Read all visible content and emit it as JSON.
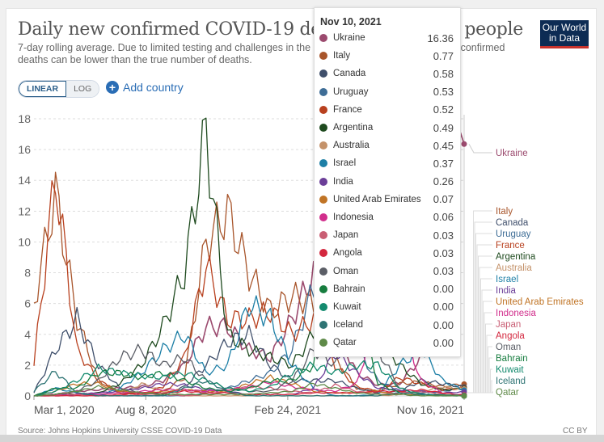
{
  "header": {
    "title": "Daily new confirmed COVID-19 deaths per million people",
    "subtitle": "7-day rolling average. Due to limited testing and challenges in the attribution of the cause of death, confirmed deaths can be lower than the true number of deaths.",
    "logo_line1": "Our World",
    "logo_line2": "in Data"
  },
  "controls": {
    "scale_linear": "LINEAR",
    "scale_log": "LOG",
    "scale_selected": "LINEAR",
    "add_country": "Add country"
  },
  "footer": {
    "source": "Source: Johns Hopkins University CSSE COVID-19 Data",
    "license": "CC BY"
  },
  "tooltip": {
    "date": "Nov 10, 2021",
    "rows": [
      {
        "name": "Ukraine",
        "value": "16.36",
        "color": "#9b4a6e"
      },
      {
        "name": "Italy",
        "value": "0.77",
        "color": "#a8552b"
      },
      {
        "name": "Canada",
        "value": "0.58",
        "color": "#3f4f6b"
      },
      {
        "name": "Uruguay",
        "value": "0.53",
        "color": "#3e6d96"
      },
      {
        "name": "France",
        "value": "0.52",
        "color": "#b8401e"
      },
      {
        "name": "Argentina",
        "value": "0.49",
        "color": "#1e4a1e"
      },
      {
        "name": "Australia",
        "value": "0.45",
        "color": "#c4926a"
      },
      {
        "name": "Israel",
        "value": "0.37",
        "color": "#1d7fa6"
      },
      {
        "name": "India",
        "value": "0.26",
        "color": "#6b3e98"
      },
      {
        "name": "United Arab Emirates",
        "value": "0.07",
        "color": "#c07425"
      },
      {
        "name": "Indonesia",
        "value": "0.06",
        "color": "#d12e8c"
      },
      {
        "name": "Japan",
        "value": "0.03",
        "color": "#c95e74"
      },
      {
        "name": "Angola",
        "value": "0.03",
        "color": "#d3273e"
      },
      {
        "name": "Oman",
        "value": "0.03",
        "color": "#5b5e66"
      },
      {
        "name": "Bahrain",
        "value": "0.00",
        "color": "#177d3f"
      },
      {
        "name": "Kuwait",
        "value": "0.00",
        "color": "#138a6e"
      },
      {
        "name": "Iceland",
        "value": "0.00",
        "color": "#2e7474"
      },
      {
        "name": "Qatar",
        "value": "0.00",
        "color": "#5f8a48"
      }
    ]
  },
  "chart_data": {
    "type": "line",
    "title": "Daily new confirmed COVID-19 deaths per million people",
    "xlabel": "",
    "ylabel": "",
    "ylim": [
      0,
      18
    ],
    "yticks": [
      "0",
      "2",
      "4",
      "6",
      "8",
      "10",
      "12",
      "14",
      "16",
      "18"
    ],
    "xticks": [
      "Mar 1, 2020",
      "Aug 8, 2020",
      "Feb 24, 2021",
      "Nov 16, 2021"
    ],
    "grid": true,
    "legend": "right-labels",
    "x": [
      "2020-03",
      "2020-04",
      "2020-05",
      "2020-06",
      "2020-07",
      "2020-08",
      "2020-09",
      "2020-10",
      "2020-11",
      "2020-12",
      "2021-01",
      "2021-02",
      "2021-03",
      "2021-04",
      "2021-05",
      "2021-06",
      "2021-07",
      "2021-08",
      "2021-09",
      "2021-10",
      "2021-11"
    ],
    "series": [
      {
        "name": "Ukraine",
        "values": [
          0,
          0.1,
          0.3,
          0.4,
          0.5,
          0.6,
          1.0,
          2.0,
          4.5,
          4.5,
          3.0,
          2.5,
          5.0,
          8.0,
          4.5,
          1.5,
          0.7,
          0.8,
          2.5,
          8.0,
          16.36
        ]
      },
      {
        "name": "Italy",
        "values": [
          6.0,
          13.2,
          5.0,
          1.0,
          0.2,
          0.1,
          0.3,
          1.2,
          10.0,
          12.0,
          8.0,
          5.5,
          6.5,
          6.0,
          2.5,
          0.5,
          0.3,
          0.8,
          0.9,
          0.6,
          0.77
        ]
      },
      {
        "name": "Canada",
        "values": [
          0.2,
          3.0,
          5.0,
          2.0,
          0.5,
          0.2,
          0.1,
          0.6,
          2.0,
          3.5,
          4.0,
          2.0,
          1.0,
          1.0,
          1.0,
          0.5,
          0.2,
          0.3,
          1.0,
          0.8,
          0.58
        ]
      },
      {
        "name": "Uruguay",
        "values": [
          0,
          0.1,
          0.1,
          0,
          0,
          0,
          0,
          0,
          0.2,
          0.5,
          1.0,
          1.5,
          3.0,
          7.0,
          5.0,
          3.0,
          1.0,
          0.3,
          0.2,
          0.3,
          0.53
        ]
      },
      {
        "name": "France",
        "values": [
          2.0,
          14.4,
          3.0,
          1.0,
          0.2,
          0.1,
          0.6,
          2.5,
          8.5,
          5.0,
          5.0,
          5.5,
          4.0,
          5.0,
          2.0,
          0.6,
          0.3,
          1.2,
          0.8,
          0.4,
          0.52
        ]
      },
      {
        "name": "Argentina",
        "values": [
          0,
          0.1,
          0.1,
          0.2,
          0.8,
          2.0,
          4.5,
          8.0,
          17.3,
          4.0,
          3.0,
          2.5,
          2.0,
          4.0,
          11.0,
          9.0,
          4.0,
          2.0,
          0.8,
          0.4,
          0.49
        ]
      },
      {
        "name": "Australia",
        "values": [
          0,
          0.1,
          0,
          0,
          0.1,
          0.8,
          0.3,
          0,
          0,
          0,
          0,
          0,
          0,
          0,
          0,
          0,
          0,
          0.1,
          0.3,
          0.6,
          0.45
        ]
      },
      {
        "name": "Israel",
        "values": [
          0,
          0.5,
          0.2,
          0,
          0.5,
          1.5,
          3.0,
          4.0,
          1.5,
          2.0,
          6.0,
          5.0,
          2.0,
          0.5,
          0,
          0,
          0.1,
          2.0,
          3.0,
          1.0,
          0.37
        ]
      },
      {
        "name": "India",
        "values": [
          0,
          0,
          0.1,
          0.2,
          0.3,
          0.5,
          0.8,
          0.7,
          0.4,
          0.3,
          0.1,
          0.1,
          0.1,
          0.5,
          2.8,
          1.5,
          0.5,
          0.4,
          0.3,
          0.2,
          0.26
        ]
      },
      {
        "name": "United Arab Emirates",
        "values": [
          0,
          0.3,
          0.8,
          0.8,
          0.3,
          0.2,
          0.3,
          0.4,
          0.3,
          0.3,
          0.8,
          1.2,
          0.8,
          0.3,
          0.2,
          0.2,
          0.3,
          0.1,
          0.1,
          0.05,
          0.07
        ]
      },
      {
        "name": "Indonesia",
        "values": [
          0,
          0.1,
          0.1,
          0.1,
          0.2,
          0.3,
          0.4,
          0.4,
          0.3,
          0.4,
          0.6,
          0.9,
          0.6,
          0.4,
          0.3,
          0.8,
          5.5,
          5.0,
          1.0,
          0.2,
          0.06
        ]
      },
      {
        "name": "Japan",
        "values": [
          0,
          0,
          0.1,
          0,
          0,
          0.1,
          0.1,
          0,
          0.1,
          0.3,
          0.6,
          0.5,
          0.3,
          0.2,
          0.7,
          0.3,
          0.1,
          0.2,
          0.3,
          0.1,
          0.03
        ]
      },
      {
        "name": "Angola",
        "values": [
          0,
          0,
          0,
          0,
          0.1,
          0.2,
          0.2,
          0.3,
          0.2,
          0.2,
          0.1,
          0.1,
          0.1,
          0.2,
          0.2,
          0.2,
          0.3,
          0.3,
          0.4,
          0.2,
          0.03
        ]
      },
      {
        "name": "Oman",
        "values": [
          0,
          0.1,
          0.3,
          1.0,
          2.5,
          3.0,
          2.0,
          2.5,
          1.0,
          0.5,
          0.3,
          0.3,
          1.0,
          3.0,
          2.0,
          5.0,
          3.0,
          0.5,
          0.1,
          0.05,
          0.03
        ]
      },
      {
        "name": "Bahrain",
        "values": [
          0,
          0.5,
          0.5,
          1.5,
          1.5,
          1.2,
          1.5,
          1.0,
          0.5,
          0.3,
          0.5,
          1.0,
          1.0,
          2.0,
          10.0,
          6.0,
          0.8,
          0.2,
          0.1,
          0.05,
          0
        ]
      },
      {
        "name": "Kuwait",
        "values": [
          0,
          0.3,
          1.0,
          1.8,
          1.5,
          1.3,
          1.2,
          1.5,
          1.0,
          0.5,
          0.3,
          0.6,
          1.5,
          2.0,
          1.5,
          2.0,
          2.0,
          0.5,
          0.1,
          0.05,
          0
        ]
      },
      {
        "name": "Iceland",
        "values": [
          0.3,
          1.6,
          0.2,
          0,
          0,
          0,
          0,
          0.5,
          1.0,
          0.3,
          0,
          0,
          0,
          0,
          0,
          0,
          0,
          0.2,
          0.1,
          0,
          0
        ]
      },
      {
        "name": "Qatar",
        "values": [
          0,
          0.1,
          0.3,
          0.6,
          0.4,
          0.2,
          0.1,
          0.1,
          0.1,
          0.1,
          0.1,
          0.2,
          0.3,
          0.8,
          0.5,
          0.2,
          0.1,
          0.1,
          0,
          0,
          0
        ]
      }
    ]
  }
}
